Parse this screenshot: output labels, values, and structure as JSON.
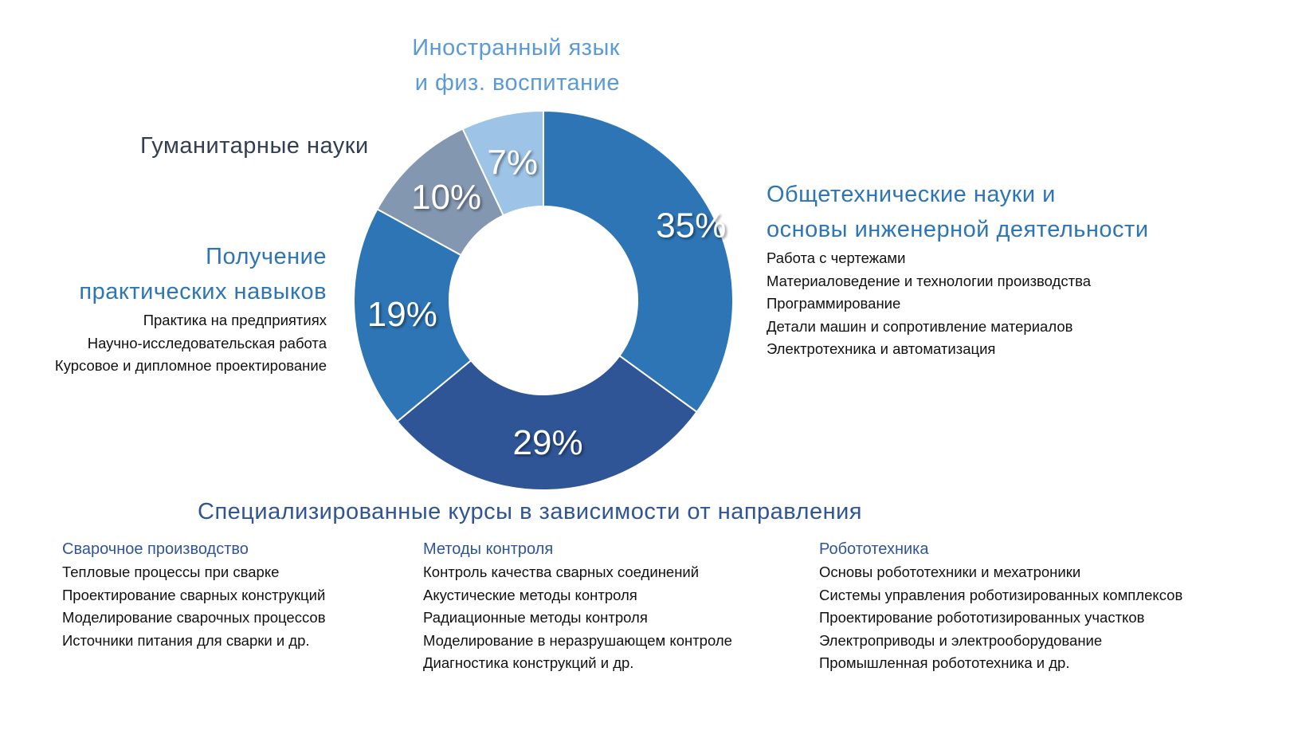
{
  "chart_data": {
    "type": "pie",
    "donut": true,
    "start": "top, clockwise",
    "slices": [
      {
        "label": "Общетехнические науки и основы инженерной деятельности",
        "value": 35,
        "value_label": "35%",
        "color": "#2E75B6"
      },
      {
        "label": "Специализированные курсы в зависимости от направления",
        "value": 29,
        "value_label": "29%",
        "color": "#2F5597"
      },
      {
        "label": "Получение практических навыков",
        "value": 19,
        "value_label": "19%",
        "color": "#2E75B6"
      },
      {
        "label": "Гуманитарные науки",
        "value": 10,
        "value_label": "10%",
        "color": "#8497B0"
      },
      {
        "label": "Иностранный язык и физ. воспитание",
        "value": 7,
        "value_label": "7%",
        "color": "#9DC3E6"
      }
    ]
  },
  "labels": {
    "foreign": {
      "line1": "Иностранный язык",
      "line2": "и физ. воспитание",
      "color": "#5B9BD5"
    },
    "humanities": {
      "title": "Гуманитарные науки",
      "color": "#333F50"
    },
    "practice": {
      "line1": "Получение",
      "line2": "практических навыков",
      "color": "#2E75B6",
      "items": [
        "Практика на предприятиях",
        "Научно-исследовательская работа",
        "Курсовое и дипломное проектирование"
      ]
    },
    "general": {
      "line1": "Общетехнические науки и",
      "line2": "основы инженерной деятельности",
      "color": "#2E75B6",
      "items": [
        "Работа с чертежами",
        "Материаловедение и технологии производства",
        "Программирование",
        "Детали машин и сопротивление материалов",
        "Электротехника и автоматизация"
      ]
    },
    "specialized": {
      "title": "Специализированные курсы в зависимости от направления",
      "color": "#2F5597",
      "groups": [
        {
          "title": "Сварочное производство",
          "items": [
            "Тепловые процессы при сварке",
            "Проектирование сварных конструкций",
            "Моделирование сварочных процессов",
            "Источники питания для сварки и др."
          ]
        },
        {
          "title": "Методы контроля",
          "items": [
            "Контроль качества сварных соединений",
            "Акустические методы контроля",
            "Радиационные методы контроля",
            "Моделирование в неразрушающем контроле",
            "Диагностика конструкций и др."
          ]
        },
        {
          "title": "Робототехника",
          "items": [
            "Основы робототехники и мехатроники",
            "Системы управления роботизированных комплексов",
            "Проектирование робототизированных участков",
            "Электроприводы и электрооборудование",
            "Промышленная робототехника и др."
          ]
        }
      ]
    }
  }
}
